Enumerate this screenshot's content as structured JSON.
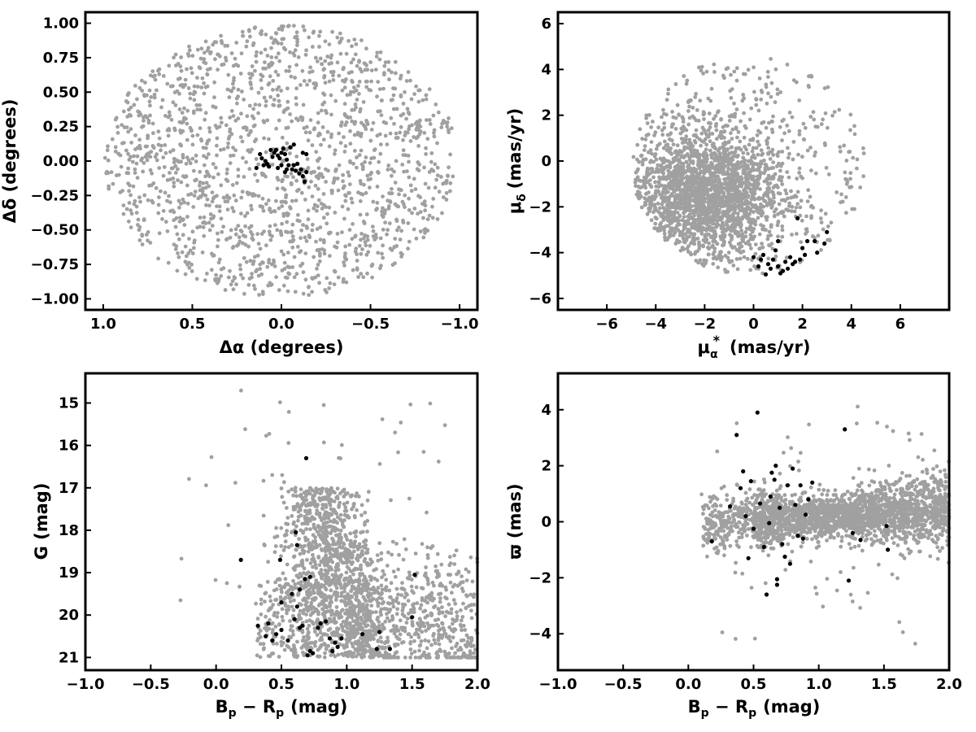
{
  "figure": {
    "background": "#ffffff"
  },
  "colors": {
    "field": "#a0a0a0",
    "member": "#000000",
    "axes": "#000000"
  },
  "chart_data": [
    {
      "id": "sky",
      "type": "scatter",
      "xlabel": "Δα (degrees)",
      "ylabel": "Δδ (degrees)",
      "xlim": [
        1.1,
        -1.1
      ],
      "ylim": [
        -1.08,
        1.08
      ],
      "xticks": [
        1.0,
        0.5,
        0.0,
        -0.5,
        -1.0
      ],
      "xticklabels": [
        "1.0",
        "0.5",
        "0.0",
        "−0.5",
        "−1.0"
      ],
      "yticks": [
        -1.0,
        -0.75,
        -0.5,
        -0.25,
        0.0,
        0.25,
        0.5,
        0.75,
        1.0
      ],
      "yticklabels": [
        "−1.00",
        "−0.75",
        "−0.50",
        "−0.25",
        "0.00",
        "0.25",
        "0.50",
        "0.75",
        "1.00"
      ],
      "grid": false,
      "series": [
        {
          "role": "field",
          "color": "#a0a0a0",
          "distribution": "uniform disk",
          "radius": 1.0,
          "count": 1650
        },
        {
          "role": "members",
          "color": "#000000",
          "points": [
            [
              0.12,
              0.05
            ],
            [
              0.11,
              0.02
            ],
            [
              0.09,
              0.0
            ],
            [
              0.08,
              -0.02
            ],
            [
              0.05,
              0.03
            ],
            [
              0.04,
              0.06
            ],
            [
              0.03,
              0.08
            ],
            [
              0.02,
              0.04
            ],
            [
              0.01,
              0.02
            ],
            [
              0.0,
              0.06
            ],
            [
              -0.01,
              0.09
            ],
            [
              -0.02,
              0.05
            ],
            [
              -0.03,
              0.01
            ],
            [
              -0.04,
              -0.03
            ],
            [
              -0.06,
              -0.06
            ],
            [
              -0.07,
              -0.03
            ],
            [
              -0.08,
              -0.07
            ],
            [
              -0.1,
              -0.09
            ],
            [
              -0.11,
              -0.06
            ],
            [
              -0.12,
              -0.11
            ],
            [
              -0.13,
              -0.15
            ],
            [
              -0.14,
              -0.08
            ],
            [
              -0.05,
              0.1
            ],
            [
              0.0,
              -0.03
            ],
            [
              0.02,
              -0.05
            ],
            [
              0.07,
              -0.04
            ],
            [
              0.1,
              -0.03
            ],
            [
              -0.02,
              -0.08
            ],
            [
              -0.09,
              -0.02
            ],
            [
              -0.07,
              0.12
            ],
            [
              -0.12,
              0.06
            ],
            [
              -0.14,
              0.05
            ],
            [
              0.14,
              -0.05
            ],
            [
              0.06,
              0.08
            ],
            [
              -0.03,
              -0.06
            ]
          ]
        }
      ]
    },
    {
      "id": "pm",
      "type": "scatter",
      "xlabel_main": "μ",
      "xlabel_sub": "α",
      "xlabel_sup": "*",
      "xlabel_units": "(mas/yr)",
      "ylabel_main": "μ",
      "ylabel_sub": "δ",
      "ylabel_units": "(mas/yr)",
      "xlim": [
        -8,
        8
      ],
      "ylim": [
        -6.5,
        6.5
      ],
      "xticks": [
        -6,
        -4,
        -2,
        0,
        2,
        4,
        6
      ],
      "xticklabels": [
        "−6",
        "−4",
        "−2",
        "0",
        "2",
        "4",
        "6"
      ],
      "yticks": [
        -6,
        -4,
        -2,
        0,
        2,
        4,
        6
      ],
      "yticklabels": [
        "−6",
        "−4",
        "−2",
        "0",
        "2",
        "4",
        "6"
      ],
      "grid": false,
      "series": [
        {
          "role": "field",
          "color": "#a0a0a0",
          "distribution": "disk, dense toward lower-left",
          "center": [
            -0.2,
            -0.2
          ],
          "radius": 4.8,
          "count": 2400
        },
        {
          "role": "members",
          "color": "#000000",
          "points": [
            [
              0.4,
              -4.1
            ],
            [
              0.6,
              -4.5
            ],
            [
              0.8,
              -4.3
            ],
            [
              1.0,
              -4.6
            ],
            [
              1.2,
              -4.8
            ],
            [
              1.5,
              -4.2
            ],
            [
              1.7,
              -4.4
            ],
            [
              1.9,
              -4.3
            ],
            [
              2.0,
              -3.8
            ],
            [
              2.2,
              -3.5
            ],
            [
              2.5,
              -3.5
            ],
            [
              2.6,
              -4.0
            ],
            [
              2.9,
              -3.6
            ],
            [
              3.0,
              -3.1
            ],
            [
              1.8,
              -2.5
            ],
            [
              1.0,
              -3.5
            ],
            [
              0.9,
              -3.9
            ],
            [
              0.3,
              -4.3
            ],
            [
              0.7,
              -4.7
            ],
            [
              1.1,
              -4.9
            ],
            [
              0.2,
              -4.6
            ],
            [
              0.5,
              -4.95
            ],
            [
              1.4,
              -4.7
            ],
            [
              1.6,
              -4.5
            ],
            [
              0.0,
              -4.2
            ],
            [
              2.1,
              -4.1
            ],
            [
              1.3,
              -4.4
            ]
          ]
        }
      ]
    },
    {
      "id": "cmd",
      "type": "scatter",
      "xlabel_main": "B",
      "xlabel_sub1": "p",
      "xlabel_mid": " − R",
      "xlabel_sub2": "p",
      "xlabel_units": "(mag)",
      "ylabel": "G (mag)",
      "xlim": [
        -1.0,
        2.0
      ],
      "ylim": [
        21.3,
        14.3
      ],
      "inverted_y": true,
      "xticks": [
        -1.0,
        -0.5,
        0.0,
        0.5,
        1.0,
        1.5,
        2.0
      ],
      "xticklabels": [
        "−1.0",
        "−0.5",
        "0.0",
        "0.5",
        "1.0",
        "1.5",
        "2.0"
      ],
      "yticks": [
        15,
        16,
        17,
        18,
        19,
        20,
        21
      ],
      "yticklabels": [
        "15",
        "16",
        "17",
        "18",
        "19",
        "20",
        "21"
      ],
      "grid": false,
      "series": [
        {
          "role": "field",
          "color": "#a0a0a0",
          "distribution": "two-branch field sequence",
          "count": 2000
        },
        {
          "role": "members",
          "color": "#000000",
          "points": [
            [
              0.32,
              20.25
            ],
            [
              0.38,
              20.5
            ],
            [
              0.4,
              20.2
            ],
            [
              0.43,
              20.6
            ],
            [
              0.46,
              20.45
            ],
            [
              0.5,
              20.35
            ],
            [
              0.55,
              20.6
            ],
            [
              0.6,
              20.1
            ],
            [
              0.64,
              20.3
            ],
            [
              0.66,
              20.25
            ],
            [
              0.7,
              20.95
            ],
            [
              0.72,
              20.85
            ],
            [
              0.74,
              20.9
            ],
            [
              0.78,
              20.3
            ],
            [
              0.8,
              20.2
            ],
            [
              0.84,
              20.15
            ],
            [
              0.87,
              20.55
            ],
            [
              0.89,
              20.85
            ],
            [
              0.91,
              20.65
            ],
            [
              0.93,
              20.75
            ],
            [
              0.96,
              20.55
            ],
            [
              1.12,
              20.45
            ],
            [
              1.23,
              20.8
            ],
            [
              1.25,
              20.4
            ],
            [
              1.33,
              20.8
            ],
            [
              1.5,
              20.05
            ],
            [
              0.5,
              19.7
            ],
            [
              0.58,
              19.5
            ],
            [
              0.62,
              19.8
            ],
            [
              0.64,
              19.4
            ],
            [
              0.68,
              19.15
            ],
            [
              0.72,
              19.1
            ],
            [
              0.19,
              18.7
            ],
            [
              0.49,
              18.7
            ],
            [
              0.62,
              18.35
            ],
            [
              0.61,
              18.05
            ],
            [
              0.69,
              16.3
            ],
            [
              1.52,
              19.05
            ]
          ]
        }
      ]
    },
    {
      "id": "parallax",
      "type": "scatter",
      "xlabel_main": "B",
      "xlabel_sub1": "p",
      "xlabel_mid": " − R",
      "xlabel_sub2": "p",
      "xlabel_units": "(mag)",
      "ylabel": "ϖ (mas)",
      "xlim": [
        -1.0,
        2.0
      ],
      "ylim": [
        -5.3,
        5.3
      ],
      "xticks": [
        -1.0,
        -0.5,
        0.0,
        0.5,
        1.0,
        1.5,
        2.0
      ],
      "xticklabels": [
        "−1.0",
        "−0.5",
        "0.0",
        "0.5",
        "1.0",
        "1.5",
        "2.0"
      ],
      "yticks": [
        -4,
        -2,
        0,
        2,
        4
      ],
      "yticklabels": [
        "−4",
        "−2",
        "0",
        "2",
        "4"
      ],
      "grid": false,
      "series": [
        {
          "role": "field",
          "color": "#a0a0a0",
          "distribution": "band around 0",
          "count": 2300
        },
        {
          "role": "members",
          "color": "#000000",
          "points": [
            [
              0.37,
              3.1
            ],
            [
              0.53,
              3.9
            ],
            [
              0.18,
              -0.7
            ],
            [
              0.32,
              0.55
            ],
            [
              0.4,
              1.2
            ],
            [
              0.42,
              1.8
            ],
            [
              0.44,
              0.2
            ],
            [
              0.46,
              -1.3
            ],
            [
              0.48,
              1.45
            ],
            [
              0.5,
              -0.25
            ],
            [
              0.55,
              0.65
            ],
            [
              0.58,
              -0.9
            ],
            [
              0.6,
              -2.6
            ],
            [
              0.62,
              -0.05
            ],
            [
              0.63,
              0.9
            ],
            [
              0.64,
              1.75
            ],
            [
              0.66,
              1.5
            ],
            [
              0.67,
              2.0
            ],
            [
              0.68,
              -2.05
            ],
            [
              0.68,
              -2.25
            ],
            [
              0.7,
              0.5
            ],
            [
              0.72,
              -0.8
            ],
            [
              0.74,
              -1.25
            ],
            [
              0.76,
              1.3
            ],
            [
              0.78,
              -1.5
            ],
            [
              0.8,
              1.9
            ],
            [
              0.82,
              0.6
            ],
            [
              0.84,
              -0.5
            ],
            [
              0.86,
              1.3
            ],
            [
              0.88,
              -0.6
            ],
            [
              0.9,
              0.25
            ],
            [
              0.92,
              0.8
            ],
            [
              0.95,
              1.4
            ],
            [
              1.2,
              3.3
            ],
            [
              1.23,
              -2.1
            ],
            [
              1.26,
              -0.4
            ],
            [
              1.32,
              -0.65
            ],
            [
              1.53,
              -1.0
            ],
            [
              1.52,
              -0.15
            ]
          ]
        }
      ]
    }
  ]
}
